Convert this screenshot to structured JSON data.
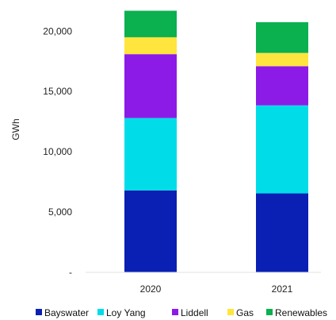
{
  "chart_data": {
    "type": "bar",
    "stacked": true,
    "categories": [
      "2020",
      "2021"
    ],
    "ylabel": "GWh",
    "xlabel": "",
    "title": "",
    "ylim": [
      0,
      21800
    ],
    "yticks": [
      0,
      5000,
      10000,
      15000,
      20000
    ],
    "ytick_labels": [
      "-",
      "5,000",
      "10,000",
      "15,000",
      "20,000"
    ],
    "grid": false,
    "legend_position": "bottom",
    "series": [
      {
        "name": "Bayswater",
        "color": "#0a1fb3",
        "values": [
          6800,
          6550
        ]
      },
      {
        "name": "Loy Yang",
        "color": "#00dde8",
        "values": [
          6000,
          7300
        ]
      },
      {
        "name": "Liddell",
        "color": "#8c1be8",
        "values": [
          5300,
          3250
        ]
      },
      {
        "name": "Gas",
        "color": "#ffe53d",
        "values": [
          1400,
          1100
        ]
      },
      {
        "name": "Renewables",
        "color": "#0bb04f",
        "values": [
          2200,
          2550
        ]
      }
    ]
  }
}
